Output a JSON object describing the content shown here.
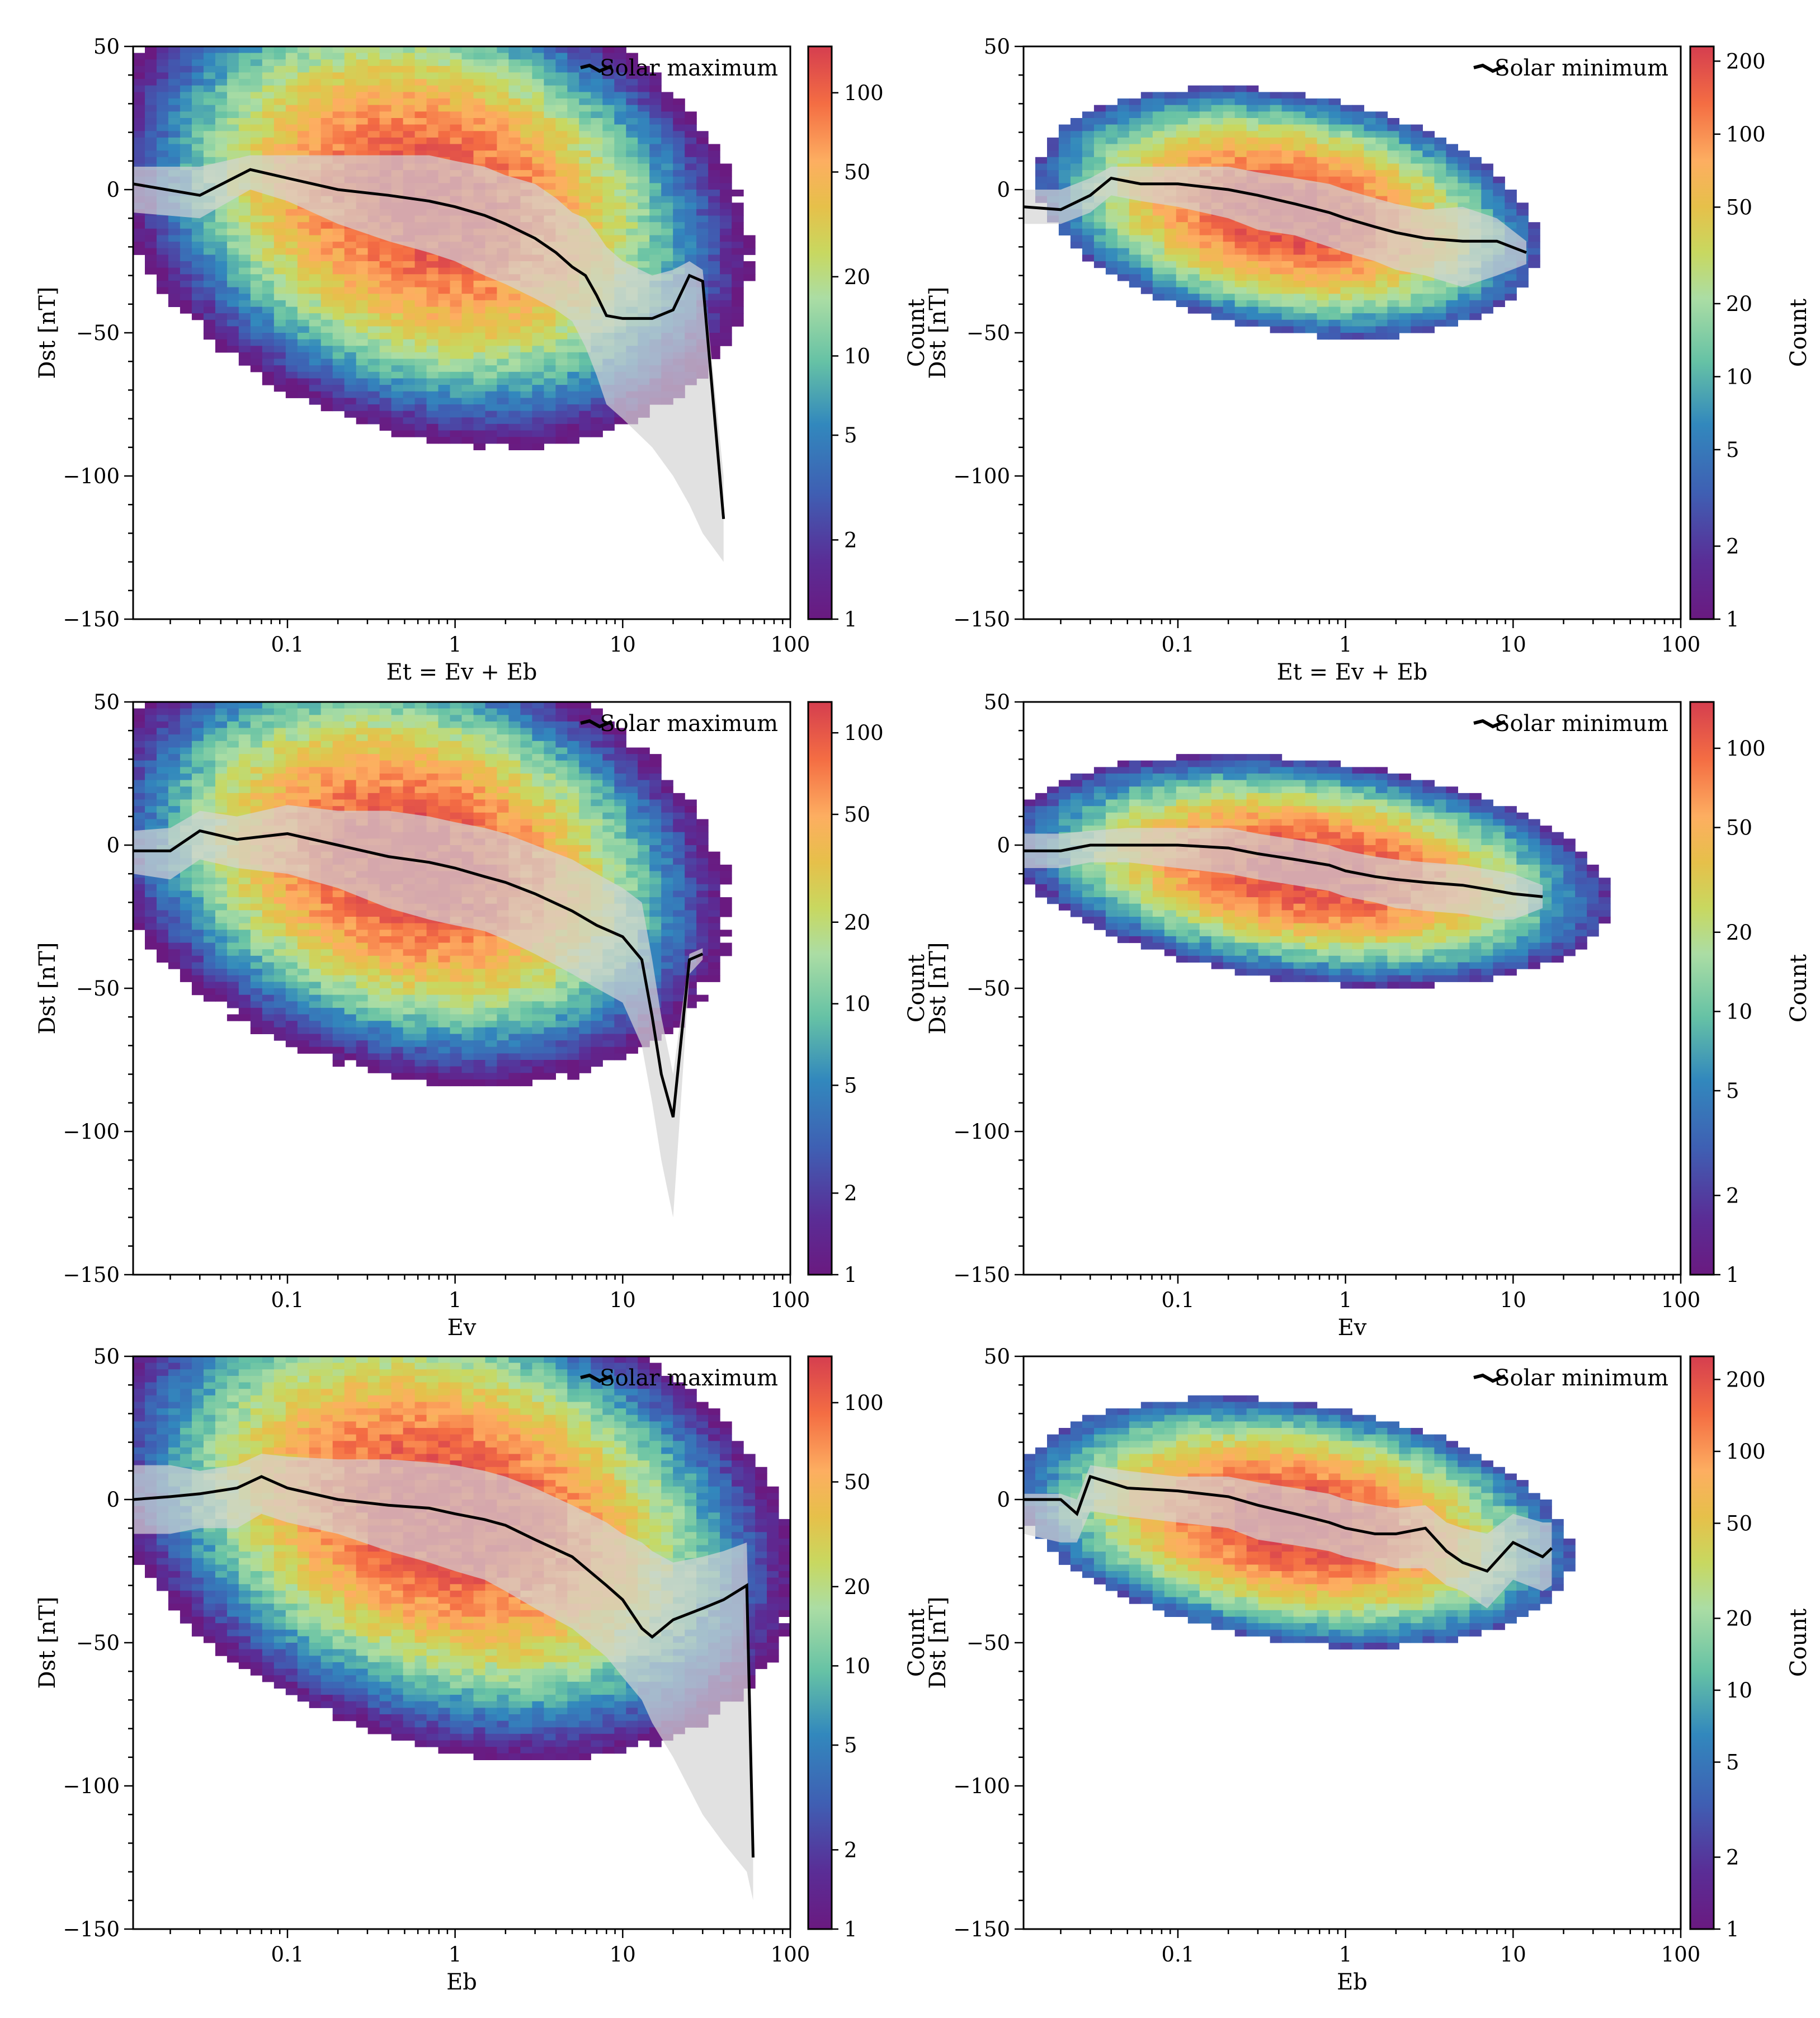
{
  "chart_data": [
    {
      "type": "heatmap",
      "legend": "Solar maximum",
      "legend_position": "top-right",
      "xlabel": "Et = Ev + Eb",
      "ylabel": "Dst [nT]",
      "xscale": "log",
      "xlim": [
        0.012,
        100
      ],
      "ylim": [
        -150,
        50
      ],
      "x_ticks": [
        "0.1",
        "1",
        "10",
        "100"
      ],
      "y_ticks": [
        "50",
        "0",
        "−50",
        "−100",
        "−150"
      ],
      "colorbar": {
        "label": "Count",
        "scale": "log",
        "range": [
          1,
          150
        ],
        "ticks": [
          1,
          2,
          5,
          10,
          20,
          50,
          100
        ]
      },
      "median_line": {
        "x": [
          0.012,
          0.03,
          0.06,
          0.1,
          0.2,
          0.4,
          0.7,
          1,
          1.5,
          2,
          3,
          4,
          5,
          6,
          7,
          8,
          10,
          15,
          20,
          25,
          30,
          40
        ],
        "y": [
          2,
          -2,
          7,
          4,
          0,
          -2,
          -4,
          -6,
          -9,
          -12,
          -17,
          -22,
          -27,
          -30,
          -37,
          -44,
          -45,
          -45,
          -42,
          -30,
          -32,
          -115
        ]
      },
      "spread_band": {
        "x": [
          0.012,
          0.03,
          0.06,
          0.1,
          0.2,
          0.4,
          0.7,
          1,
          1.5,
          2,
          3,
          4,
          5,
          6,
          7,
          8,
          10,
          15,
          20,
          25,
          30,
          40
        ],
        "upper": [
          8,
          8,
          12,
          12,
          12,
          12,
          12,
          10,
          8,
          5,
          2,
          -3,
          -8,
          -10,
          -15,
          -20,
          -25,
          -30,
          -28,
          -25,
          -28,
          -100
        ],
        "lower": [
          -8,
          -10,
          0,
          -4,
          -12,
          -18,
          -22,
          -25,
          -30,
          -33,
          -38,
          -42,
          -46,
          -55,
          -65,
          -75,
          -80,
          -90,
          -100,
          -110,
          -120,
          -130
        ]
      },
      "density_model": {
        "x_center": 0.7,
        "x_spread": 0.6,
        "y_intercept": -5,
        "y_slope": -10,
        "y_spread": 26,
        "peak": 140,
        "extent": 3.2
      }
    },
    {
      "type": "heatmap",
      "legend": "Solar minimum",
      "legend_position": "top-right",
      "xlabel": "Et = Ev + Eb",
      "ylabel": "Dst [nT]",
      "xscale": "log",
      "xlim": [
        0.012,
        100
      ],
      "ylim": [
        -150,
        50
      ],
      "x_ticks": [
        "0.1",
        "1",
        "10",
        "100"
      ],
      "y_ticks": [
        "50",
        "0",
        "−50",
        "−100",
        "−150"
      ],
      "colorbar": {
        "label": "Count",
        "scale": "log",
        "range": [
          1,
          230
        ],
        "ticks": [
          1,
          2,
          5,
          10,
          20,
          50,
          100,
          200
        ]
      },
      "median_line": {
        "x": [
          0.012,
          0.02,
          0.03,
          0.04,
          0.06,
          0.1,
          0.2,
          0.3,
          0.5,
          0.8,
          1,
          1.5,
          2,
          3,
          5,
          8,
          12
        ],
        "y": [
          -6,
          -7,
          -2,
          4,
          2,
          2,
          0,
          -2,
          -5,
          -8,
          -10,
          -13,
          -15,
          -17,
          -18,
          -18,
          -22
        ]
      },
      "spread_band": {
        "x": [
          0.012,
          0.02,
          0.03,
          0.04,
          0.06,
          0.1,
          0.2,
          0.3,
          0.5,
          0.8,
          1,
          1.5,
          2,
          3,
          5,
          8,
          12
        ],
        "upper": [
          0,
          0,
          4,
          8,
          8,
          8,
          8,
          6,
          4,
          2,
          0,
          -3,
          -5,
          -7,
          -6,
          -10,
          -18
        ],
        "lower": [
          -12,
          -12,
          -8,
          -2,
          -4,
          -6,
          -10,
          -14,
          -16,
          -20,
          -22,
          -25,
          -28,
          -30,
          -34,
          -30,
          -26
        ]
      },
      "density_model": {
        "x_center": 0.45,
        "x_spread": 0.5,
        "y_intercept": -8,
        "y_slope": -8,
        "y_spread": 14,
        "peak": 230,
        "extent": 3.0
      }
    },
    {
      "type": "heatmap",
      "legend": "Solar maximum",
      "legend_position": "top-right",
      "xlabel": "Ev",
      "ylabel": "Dst [nT]",
      "xscale": "log",
      "xlim": [
        0.012,
        100
      ],
      "ylim": [
        -150,
        50
      ],
      "x_ticks": [
        "0.1",
        "1",
        "10",
        "100"
      ],
      "y_ticks": [
        "50",
        "0",
        "−50",
        "−100",
        "−150"
      ],
      "colorbar": {
        "label": "Count",
        "scale": "log",
        "range": [
          1,
          130
        ],
        "ticks": [
          1,
          2,
          5,
          10,
          20,
          50,
          100
        ]
      },
      "median_line": {
        "x": [
          0.012,
          0.02,
          0.03,
          0.05,
          0.1,
          0.2,
          0.4,
          0.7,
          1,
          1.5,
          2,
          3,
          5,
          7,
          10,
          13,
          15,
          17,
          20,
          25,
          30
        ],
        "y": [
          -2,
          -2,
          5,
          2,
          4,
          0,
          -4,
          -6,
          -8,
          -11,
          -13,
          -17,
          -23,
          -28,
          -32,
          -40,
          -60,
          -80,
          -95,
          -40,
          -38
        ]
      },
      "spread_band": {
        "x": [
          0.012,
          0.02,
          0.03,
          0.05,
          0.1,
          0.2,
          0.4,
          0.7,
          1,
          1.5,
          2,
          3,
          5,
          7,
          10,
          13,
          15,
          17,
          20,
          25,
          30
        ],
        "upper": [
          5,
          6,
          12,
          10,
          14,
          12,
          12,
          10,
          8,
          6,
          4,
          0,
          -5,
          -10,
          -15,
          -20,
          -40,
          -60,
          -80,
          -38,
          -36
        ],
        "lower": [
          -10,
          -12,
          -5,
          -8,
          -10,
          -15,
          -22,
          -26,
          -28,
          -30,
          -33,
          -38,
          -45,
          -50,
          -55,
          -70,
          -90,
          -110,
          -130,
          -45,
          -40
        ]
      },
      "density_model": {
        "x_center": 0.55,
        "x_spread": 0.6,
        "y_intercept": -6,
        "y_slope": -9,
        "y_spread": 24,
        "peak": 130,
        "extent": 3.2
      }
    },
    {
      "type": "heatmap",
      "legend": "Solar minimum",
      "legend_position": "top-right",
      "xlabel": "Ev",
      "ylabel": "Dst [nT]",
      "xscale": "log",
      "xlim": [
        0.012,
        100
      ],
      "ylim": [
        -150,
        50
      ],
      "x_ticks": [
        "0.1",
        "1",
        "10",
        "100"
      ],
      "y_ticks": [
        "50",
        "0",
        "−50",
        "−100",
        "−150"
      ],
      "colorbar": {
        "label": "Count",
        "scale": "log",
        "range": [
          1,
          150
        ],
        "ticks": [
          1,
          2,
          5,
          10,
          20,
          50,
          100
        ]
      },
      "median_line": {
        "x": [
          0.012,
          0.02,
          0.03,
          0.05,
          0.1,
          0.2,
          0.3,
          0.5,
          0.8,
          1,
          1.5,
          2,
          3,
          5,
          8,
          10,
          15
        ],
        "y": [
          -2,
          -2,
          0,
          0,
          0,
          -1,
          -3,
          -5,
          -7,
          -9,
          -11,
          -12,
          -13,
          -14,
          -16,
          -17,
          -18
        ]
      },
      "spread_band": {
        "x": [
          0.012,
          0.02,
          0.03,
          0.05,
          0.1,
          0.2,
          0.3,
          0.5,
          0.8,
          1,
          1.5,
          2,
          3,
          5,
          8,
          10,
          15
        ],
        "upper": [
          4,
          4,
          5,
          6,
          6,
          6,
          4,
          2,
          0,
          -2,
          -4,
          -5,
          -6,
          -7,
          -9,
          -10,
          -14
        ],
        "lower": [
          -8,
          -8,
          -6,
          -6,
          -8,
          -10,
          -12,
          -14,
          -16,
          -18,
          -20,
          -22,
          -23,
          -24,
          -26,
          -26,
          -22
        ]
      },
      "density_model": {
        "x_center": 0.6,
        "x_spread": 0.6,
        "y_intercept": -9,
        "y_slope": -6,
        "y_spread": 13,
        "peak": 150,
        "extent": 3.0
      }
    },
    {
      "type": "heatmap",
      "legend": "Solar maximum",
      "legend_position": "top-right",
      "xlabel": "Eb",
      "ylabel": "Dst [nT]",
      "xscale": "log",
      "xlim": [
        0.012,
        100
      ],
      "ylim": [
        -150,
        50
      ],
      "x_ticks": [
        "0.1",
        "1",
        "10",
        "100"
      ],
      "y_ticks": [
        "50",
        "0",
        "−50",
        "−100",
        "−150"
      ],
      "colorbar": {
        "label": "Count",
        "scale": "log",
        "range": [
          1,
          150
        ],
        "ticks": [
          1,
          2,
          5,
          10,
          20,
          50,
          100
        ]
      },
      "median_line": {
        "x": [
          0.012,
          0.02,
          0.03,
          0.05,
          0.07,
          0.1,
          0.2,
          0.4,
          0.7,
          1,
          1.5,
          2,
          3,
          5,
          8,
          10,
          13,
          15,
          20,
          30,
          40,
          55,
          60
        ],
        "y": [
          0,
          1,
          2,
          4,
          8,
          4,
          0,
          -2,
          -3,
          -5,
          -7,
          -9,
          -14,
          -20,
          -30,
          -35,
          -45,
          -48,
          -42,
          -38,
          -35,
          -30,
          -125
        ]
      },
      "spread_band": {
        "x": [
          0.012,
          0.02,
          0.03,
          0.05,
          0.07,
          0.1,
          0.2,
          0.4,
          0.7,
          1,
          1.5,
          2,
          3,
          5,
          8,
          10,
          13,
          15,
          20,
          30,
          40,
          55,
          60
        ],
        "upper": [
          12,
          12,
          10,
          12,
          16,
          15,
          14,
          14,
          13,
          12,
          10,
          8,
          4,
          -2,
          -8,
          -12,
          -15,
          -18,
          -22,
          -20,
          -18,
          -15,
          -110
        ],
        "lower": [
          -12,
          -12,
          -10,
          -10,
          -5,
          -8,
          -12,
          -18,
          -22,
          -25,
          -28,
          -32,
          -38,
          -45,
          -55,
          -62,
          -70,
          -78,
          -90,
          -110,
          -120,
          -130,
          -140
        ]
      },
      "density_model": {
        "x_center": 0.9,
        "x_spread": 0.65,
        "y_intercept": -5,
        "y_slope": -11,
        "y_spread": 26,
        "peak": 150,
        "extent": 3.2
      }
    },
    {
      "type": "heatmap",
      "legend": "Solar minimum",
      "legend_position": "top-right",
      "xlabel": "Eb",
      "ylabel": "Dst [nT]",
      "xscale": "log",
      "xlim": [
        0.012,
        100
      ],
      "ylim": [
        -150,
        50
      ],
      "x_ticks": [
        "0.1",
        "1",
        "10",
        "100"
      ],
      "y_ticks": [
        "50",
        "0",
        "−50",
        "−100",
        "−150"
      ],
      "colorbar": {
        "label": "Count",
        "scale": "log",
        "range": [
          1,
          250
        ],
        "ticks": [
          1,
          2,
          5,
          10,
          20,
          50,
          100,
          200
        ]
      },
      "median_line": {
        "x": [
          0.012,
          0.02,
          0.025,
          0.03,
          0.05,
          0.1,
          0.2,
          0.3,
          0.5,
          0.8,
          1,
          1.5,
          2,
          3,
          4,
          5,
          7,
          10,
          15,
          17
        ],
        "y": [
          0,
          0,
          -5,
          8,
          4,
          3,
          1,
          -2,
          -5,
          -8,
          -10,
          -12,
          -12,
          -10,
          -18,
          -22,
          -25,
          -15,
          -20,
          -17
        ]
      },
      "spread_band": {
        "x": [
          0.012,
          0.02,
          0.025,
          0.03,
          0.05,
          0.1,
          0.2,
          0.3,
          0.5,
          0.8,
          1,
          1.5,
          2,
          3,
          4,
          5,
          7,
          10,
          15,
          17
        ],
        "upper": [
          2,
          2,
          0,
          12,
          10,
          8,
          8,
          6,
          4,
          2,
          0,
          -2,
          -3,
          -2,
          -8,
          -10,
          -12,
          -5,
          -8,
          -8
        ],
        "lower": [
          -12,
          -15,
          -15,
          -4,
          -6,
          -8,
          -10,
          -14,
          -16,
          -18,
          -20,
          -22,
          -24,
          -24,
          -30,
          -32,
          -38,
          -28,
          -32,
          -30
        ]
      },
      "density_model": {
        "x_center": 0.5,
        "x_spread": 0.55,
        "y_intercept": -8,
        "y_slope": -7,
        "y_spread": 14,
        "peak": 250,
        "extent": 3.0
      }
    }
  ]
}
